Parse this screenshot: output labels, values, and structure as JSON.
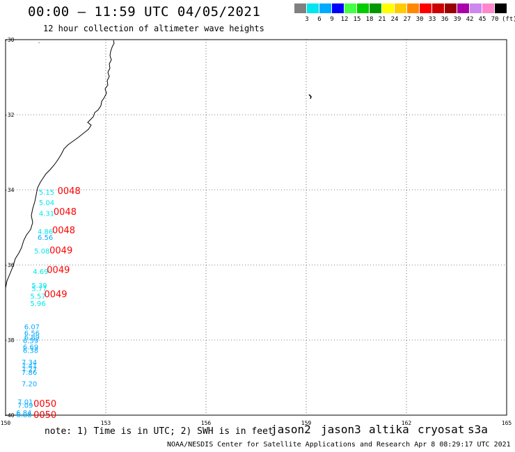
{
  "header": {
    "title": "00:00 – 11:59 UTC 04/05/2021",
    "subtitle": "12 hour collection of altimeter wave heights"
  },
  "colorbar": {
    "unit": "(ft)",
    "labels": [
      "3",
      "6",
      "9",
      "12",
      "15",
      "18",
      "21",
      "24",
      "27",
      "30",
      "33",
      "36",
      "39",
      "42",
      "45",
      "70"
    ],
    "colors": [
      "#808080",
      "#00e5ee",
      "#00aaff",
      "#0000ff",
      "#44ff44",
      "#00cc00",
      "#009900",
      "#ffff00",
      "#ffcc00",
      "#ff8800",
      "#ff0000",
      "#cc0000",
      "#990000",
      "#aa00aa",
      "#cc88ee",
      "#ff88cc",
      "#000000"
    ]
  },
  "map": {
    "lat_labels": [
      "-30",
      "-32",
      "-34",
      "-36",
      "-38",
      "-40"
    ],
    "lon_labels": [
      "150",
      "153",
      "156",
      "159",
      "162",
      "165"
    ],
    "lon_range": [
      150,
      165
    ],
    "lat_range": [
      -40,
      -30
    ],
    "grid": "dotted"
  },
  "observations": [
    {
      "value": "5.15",
      "lon": 151.23,
      "lat": -34.13,
      "color": "#00e5ee"
    },
    {
      "value": "5.04",
      "lon": 151.23,
      "lat": -34.41,
      "color": "#00e5ee"
    },
    {
      "value": "4.31",
      "lon": 151.23,
      "lat": -34.69,
      "color": "#00e5ee"
    },
    {
      "value": "4.86",
      "lon": 151.19,
      "lat": -35.18,
      "color": "#00e5ee"
    },
    {
      "value": "6.56",
      "lon": 151.19,
      "lat": -35.33,
      "color": "#00aaff"
    },
    {
      "value": "5.08",
      "lon": 151.09,
      "lat": -35.69,
      "color": "#00e5ee"
    },
    {
      "value": "4.69",
      "lon": 151.05,
      "lat": -36.24,
      "color": "#00e5ee"
    },
    {
      "value": "5.39",
      "lon": 151.01,
      "lat": -36.61,
      "color": "#00e5ee"
    },
    {
      "value": "5.77",
      "lon": 151.01,
      "lat": -36.69,
      "color": "#00e5ee"
    },
    {
      "value": "5.57",
      "lon": 150.97,
      "lat": -36.9,
      "color": "#00e5ee"
    },
    {
      "value": "5.96",
      "lon": 150.97,
      "lat": -37.09,
      "color": "#00e5ee"
    },
    {
      "value": "6.07",
      "lon": 150.79,
      "lat": -37.71,
      "color": "#00aaff"
    },
    {
      "value": "6.56",
      "lon": 150.79,
      "lat": -37.88,
      "color": "#00aaff"
    },
    {
      "value": "6.89",
      "lon": 150.79,
      "lat": -37.99,
      "color": "#00aaff"
    },
    {
      "value": "6.59",
      "lon": 150.75,
      "lat": -38.08,
      "color": "#00aaff"
    },
    {
      "value": "6.69",
      "lon": 150.75,
      "lat": -38.25,
      "color": "#00aaff"
    },
    {
      "value": "6.38",
      "lon": 150.75,
      "lat": -38.34,
      "color": "#00aaff"
    },
    {
      "value": "7.34",
      "lon": 150.71,
      "lat": -38.66,
      "color": "#00aaff"
    },
    {
      "value": "7.41",
      "lon": 150.71,
      "lat": -38.75,
      "color": "#00aaff"
    },
    {
      "value": "7.27",
      "lon": 150.71,
      "lat": -38.84,
      "color": "#00aaff"
    },
    {
      "value": "7.86",
      "lon": 150.71,
      "lat": -38.93,
      "color": "#00aaff"
    },
    {
      "value": "7.20",
      "lon": 150.71,
      "lat": -39.23,
      "color": "#00aaff"
    },
    {
      "value": "7.01",
      "lon": 150.59,
      "lat": -39.71,
      "color": "#00aaff"
    },
    {
      "value": "7.09",
      "lon": 150.59,
      "lat": -39.81,
      "color": "#00aaff"
    },
    {
      "value": "6.84",
      "lon": 150.55,
      "lat": -40.0,
      "color": "#00aaff"
    },
    {
      "value": "6.88",
      "lon": 150.55,
      "lat": -40.06,
      "color": "#00aaff"
    }
  ],
  "time_labels": [
    {
      "text": "0048",
      "lon": 151.9,
      "lat": -34.11,
      "color": "#ff0000"
    },
    {
      "text": "0048",
      "lon": 151.78,
      "lat": -34.67,
      "color": "#ff0000"
    },
    {
      "text": "0048",
      "lon": 151.74,
      "lat": -35.16,
      "color": "#ff0000"
    },
    {
      "text": "0049",
      "lon": 151.66,
      "lat": -35.69,
      "color": "#ff0000"
    },
    {
      "text": "0049",
      "lon": 151.58,
      "lat": -36.21,
      "color": "#ff0000"
    },
    {
      "text": "0049",
      "lon": 151.5,
      "lat": -36.86,
      "color": "#ff0000"
    },
    {
      "text": "0050",
      "lon": 151.18,
      "lat": -39.78,
      "color": "#ff0000"
    },
    {
      "text": "0050",
      "lon": 151.18,
      "lat": -40.07,
      "color": "#ff0000"
    }
  ],
  "note": "note: 1) Time is in UTC; 2) SWH is in feet",
  "satellites": [
    {
      "name": "jason2",
      "color": "#0000ee"
    },
    {
      "name": "jason3",
      "color": "#009900"
    },
    {
      "name": "altika",
      "color": "#ff9900"
    },
    {
      "name": "cryosat",
      "color": "#dd0000"
    },
    {
      "name": "s3a",
      "color": "#880000"
    }
  ],
  "footer": "NOAA/NESDIS Center for Satellite Applications and Research   Apr  8 08:29:17 UTC 2021"
}
